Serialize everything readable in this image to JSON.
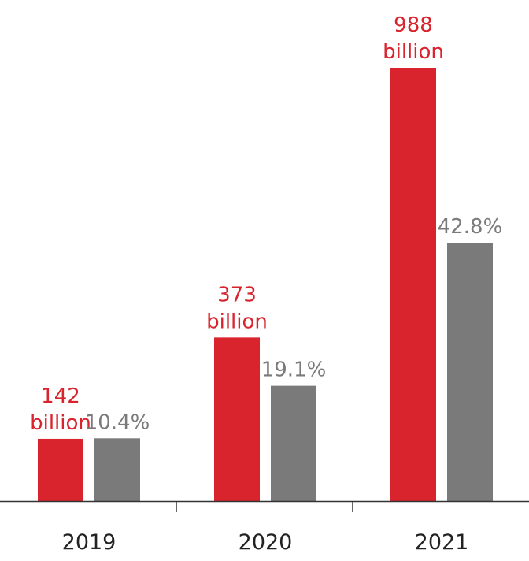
{
  "chart_data": {
    "type": "bar",
    "categories": [
      "2019",
      "2020",
      "2021"
    ],
    "series": [
      {
        "values": [
          142,
          373,
          988
        ],
        "labels": [
          [
            "142",
            "billion"
          ],
          [
            "373",
            "billion"
          ],
          [
            "988",
            "billion"
          ]
        ]
      },
      {
        "values": [
          10.4,
          19.1,
          42.8
        ],
        "labels": [
          "10.4%",
          "19.1%",
          "42.8%"
        ]
      }
    ],
    "colors": {
      "primary": "#d9232d",
      "secondary": "#7a7a7a",
      "axis": "#333333"
    },
    "grid": false,
    "legend": "none"
  }
}
